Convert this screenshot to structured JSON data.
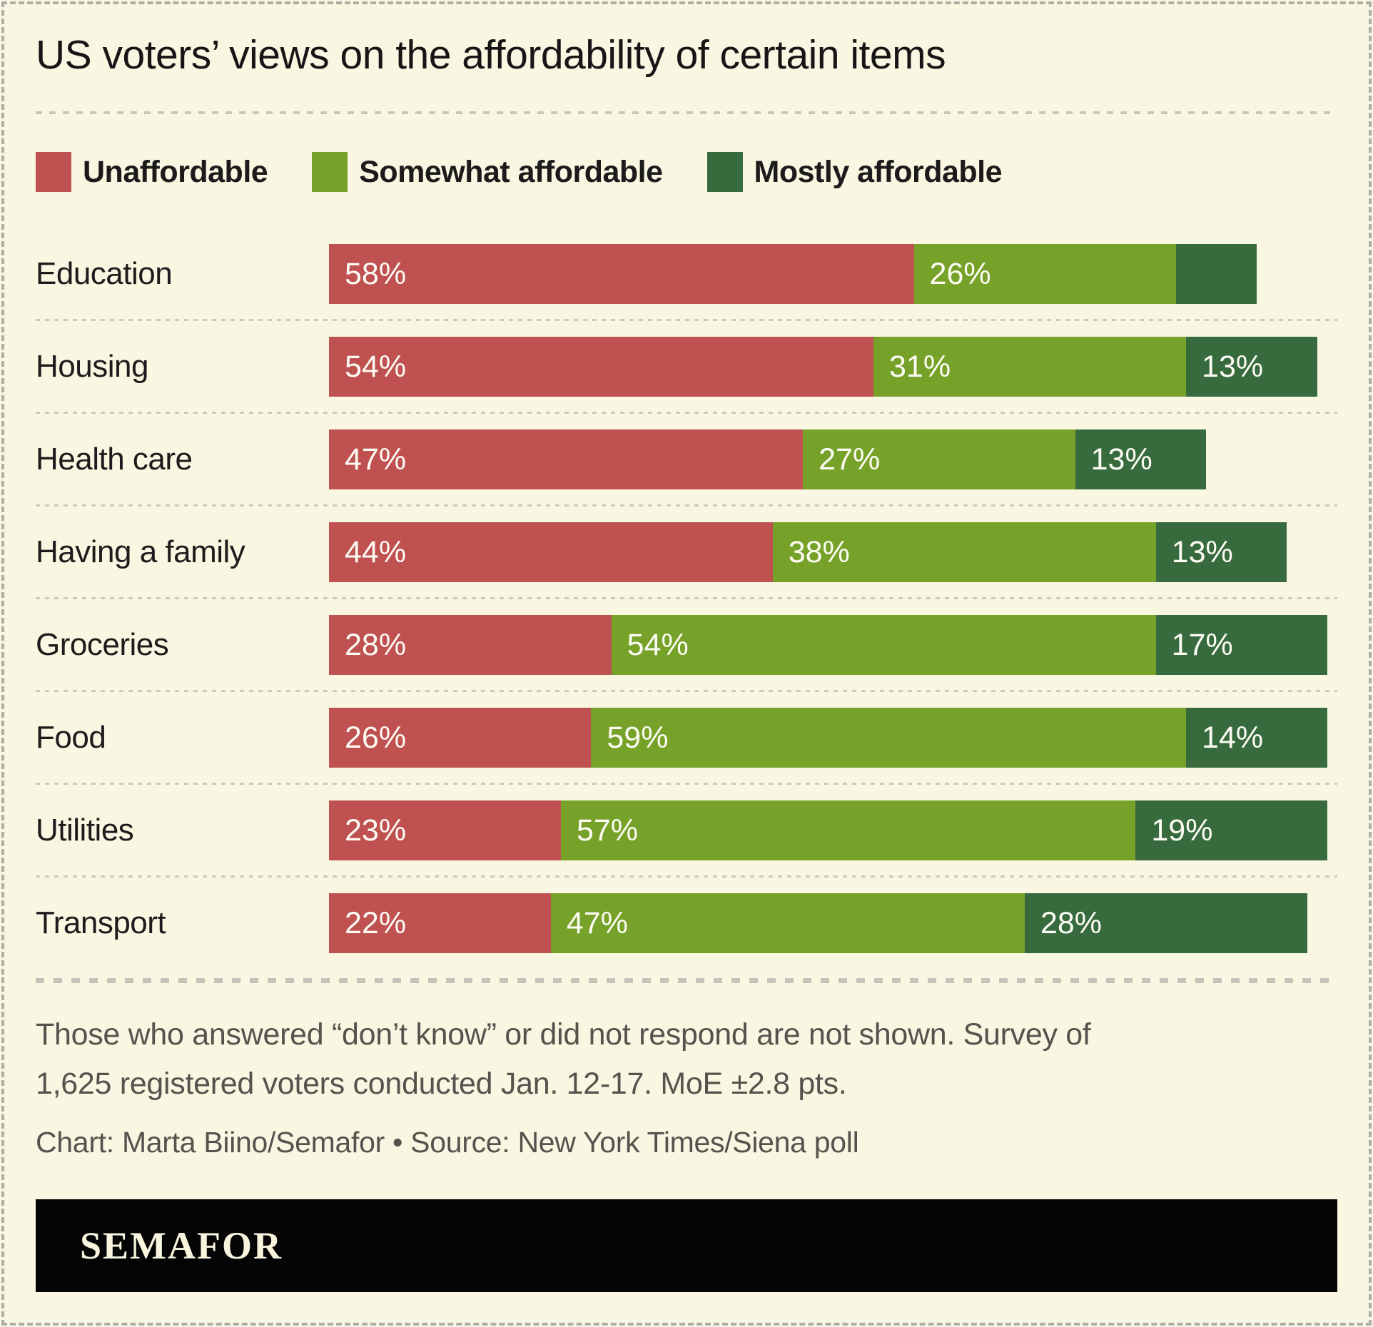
{
  "title": "US voters’ views on the affordability of certain items",
  "chart_data": {
    "type": "bar",
    "stacked": true,
    "orientation": "horizontal",
    "xlim": [
      0,
      100
    ],
    "value_suffix": "%",
    "label_min_value_to_show": 10,
    "legend_position": "top",
    "grid": false,
    "categories": [
      "Education",
      "Housing",
      "Health care",
      "Having a family",
      "Groceries",
      "Food",
      "Utilities",
      "Transport"
    ],
    "series": [
      {
        "name": "Unaffordable",
        "color": "#bf5151",
        "values": [
          58,
          54,
          47,
          44,
          28,
          26,
          23,
          22
        ]
      },
      {
        "name": "Somewhat affordable",
        "color": "#76a22a",
        "values": [
          26,
          31,
          27,
          38,
          54,
          59,
          57,
          47
        ]
      },
      {
        "name": "Mostly affordable",
        "color": "#376b3e",
        "values": [
          8,
          13,
          13,
          13,
          17,
          14,
          19,
          28
        ]
      }
    ],
    "note": "Education's Mostly affordable segment is drawn but its value label is not shown in the chart"
  },
  "footnote": "Those who answered “don’t know” or did not respond are not shown. Survey of 1,625 registered voters conducted Jan. 12-17. MoE ±2.8 pts.",
  "credit": "Chart: Marta Biino/Semafor • Source: New York Times/Siena poll",
  "brand": {
    "logo_text": "SEMAFOR",
    "bar_color": "#050505",
    "logo_color": "#f8f4dd"
  },
  "colors": {
    "background": "#f9f6e1",
    "border_dash": "#aeaea8",
    "bar_label_text": "#fdfcf4"
  }
}
